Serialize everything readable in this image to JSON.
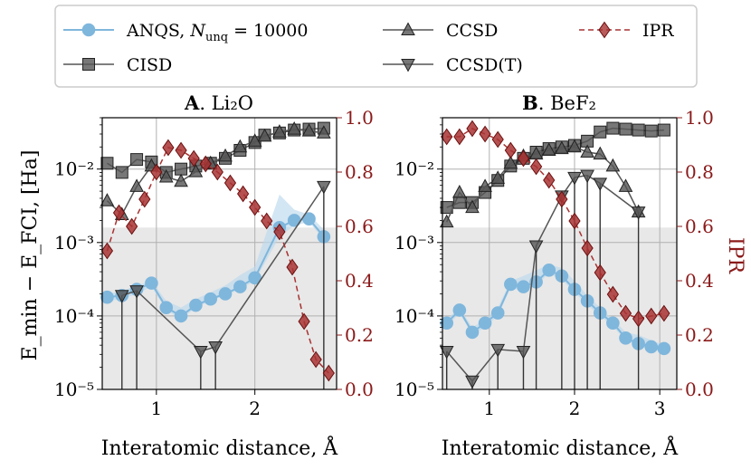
{
  "chart_data": [
    {
      "type": "line",
      "panel_letter": "A",
      "title_rest": "Li₂O",
      "xlabel": "Interatomic distance, Å",
      "ylabel": "E_min − E_FCI, [Ha]",
      "ylabel_right": "",
      "xlim": [
        0.45,
        2.83
      ],
      "ylim": [
        1e-05,
        0.05
      ],
      "ylim_right": [
        0.0,
        1.0
      ],
      "y_scale": "log",
      "x_ticks": [
        1,
        2
      ],
      "y_ticks": [
        "10⁻⁵",
        "10⁻⁴",
        "10⁻³",
        "10⁻²"
      ],
      "y_right_ticks": [
        "0.0",
        "0.2",
        "0.4",
        "0.6",
        "0.8",
        "1.0"
      ],
      "chemical_accuracy_band": 0.0016,
      "grid": true,
      "series": [
        {
          "key": "anqs",
          "x": [
            0.5,
            0.65,
            0.8,
            0.95,
            1.1,
            1.25,
            1.4,
            1.55,
            1.7,
            1.85,
            2.0,
            2.25,
            2.4,
            2.55,
            2.7
          ],
          "y": [
            0.00018,
            0.00019,
            0.00023,
            0.00028,
            0.00013,
            0.0001,
            0.00014,
            0.00017,
            0.0002,
            0.00025,
            0.00033,
            0.0016,
            0.002,
            0.0021,
            0.0012
          ],
          "band_high": [
            0.0002,
            0.00022,
            0.00026,
            0.0003,
            0.00016,
            0.00013,
            0.00017,
            0.00021,
            0.00026,
            0.00036,
            0.00047,
            0.0045,
            0.0028,
            0.0024,
            0.0015
          ],
          "band_low": [
            0.00016,
            0.00017,
            0.0002,
            0.00025,
            0.00012,
            9e-05,
            0.00013,
            0.00016,
            0.00019,
            0.00023,
            0.0003,
            0.0012,
            0.0017,
            0.0019,
            0.0011
          ]
        },
        {
          "key": "cisd",
          "x": [
            0.5,
            0.65,
            0.8,
            0.95,
            1.1,
            1.25,
            1.4,
            1.55,
            1.7,
            1.85,
            2.0,
            2.1,
            2.25,
            2.4,
            2.55,
            2.7
          ],
          "y": [
            0.012,
            0.009,
            0.0135,
            0.0125,
            0.009,
            0.01,
            0.011,
            0.012,
            0.014,
            0.018,
            0.023,
            0.029,
            0.031,
            0.034,
            0.035,
            0.036
          ]
        },
        {
          "key": "ccsd",
          "x": [
            0.5,
            0.65,
            0.8,
            0.95,
            1.1,
            1.25,
            1.4,
            1.55,
            1.7,
            1.85,
            2.0,
            2.1,
            2.25,
            2.4,
            2.55,
            2.7
          ],
          "y": [
            0.0037,
            0.0024,
            0.0058,
            0.011,
            0.0078,
            0.0068,
            0.0092,
            0.012,
            0.015,
            0.02,
            0.024,
            0.028,
            0.032,
            0.035,
            0.033,
            0.031
          ]
        },
        {
          "key": "ccsdt",
          "x": [
            0.65,
            0.8,
            1.45,
            1.6,
            2.7
          ],
          "y": [
            0.00019,
            0.00022,
            3.3e-05,
            3.8e-05,
            0.0058
          ]
        },
        {
          "key": "ipr",
          "x": [
            0.5,
            0.62,
            0.75,
            0.88,
            1.0,
            1.12,
            1.25,
            1.38,
            1.5,
            1.62,
            1.75,
            1.88,
            2.0,
            2.12,
            2.25,
            2.38,
            2.5,
            2.62,
            2.75
          ],
          "y": [
            0.51,
            0.65,
            0.6,
            0.7,
            0.8,
            0.89,
            0.88,
            0.85,
            0.83,
            0.8,
            0.76,
            0.72,
            0.67,
            0.62,
            0.58,
            0.45,
            0.25,
            0.11,
            0.06
          ]
        }
      ]
    },
    {
      "type": "line",
      "panel_letter": "B",
      "title_rest": "BeF₂",
      "xlabel": "Interatomic distance, Å",
      "ylabel": "",
      "ylabel_right": "IPR",
      "xlim": [
        0.45,
        3.2
      ],
      "ylim": [
        1e-05,
        0.05
      ],
      "ylim_right": [
        0.0,
        1.0
      ],
      "y_scale": "log",
      "x_ticks": [
        1,
        2,
        3
      ],
      "y_ticks": [
        "10⁻⁵",
        "10⁻⁴",
        "10⁻³",
        "10⁻²"
      ],
      "y_right_ticks": [
        "0.0",
        "0.2",
        "0.4",
        "0.6",
        "0.8",
        "1.0"
      ],
      "chemical_accuracy_band": 0.0016,
      "grid": true,
      "series": [
        {
          "key": "anqs",
          "x": [
            0.5,
            0.65,
            0.8,
            0.95,
            1.1,
            1.25,
            1.4,
            1.55,
            1.7,
            1.85,
            2.0,
            2.15,
            2.3,
            2.45,
            2.6,
            2.75,
            2.9,
            3.05
          ],
          "y": [
            8e-05,
            0.00012,
            6e-05,
            8e-05,
            0.00011,
            0.00027,
            0.00025,
            0.00029,
            0.00042,
            0.00035,
            0.00023,
            0.00016,
            0.00011,
            8e-05,
            5e-05,
            4.2e-05,
            3.8e-05,
            3.6e-05
          ],
          "band_high": [
            9e-05,
            0.00013,
            7e-05,
            9e-05,
            0.00013,
            0.0003,
            0.00035,
            0.00042,
            0.0005,
            0.00045,
            0.0003,
            0.00019,
            0.00013,
            9e-05,
            6e-05,
            5.5e-05,
            4.7e-05,
            4e-05
          ],
          "band_low": [
            7e-05,
            0.00011,
            5.5e-05,
            7e-05,
            0.0001,
            0.00024,
            0.00022,
            0.00026,
            0.00038,
            0.00031,
            0.00021,
            0.00014,
            0.0001,
            7.2e-05,
            4.6e-05,
            3.9e-05,
            3.5e-05,
            3.3e-05
          ]
        },
        {
          "key": "cisd",
          "x": [
            0.5,
            0.65,
            0.8,
            0.95,
            1.1,
            1.25,
            1.4,
            1.55,
            1.7,
            1.85,
            2.0,
            2.15,
            2.3,
            2.45,
            2.6,
            2.75,
            2.9,
            3.05
          ],
          "y": [
            0.003,
            0.0035,
            0.0035,
            0.0048,
            0.007,
            0.011,
            0.014,
            0.017,
            0.019,
            0.02,
            0.021,
            0.024,
            0.032,
            0.036,
            0.035,
            0.034,
            0.033,
            0.034
          ]
        },
        {
          "key": "ccsd",
          "x": [
            0.5,
            0.65,
            0.8,
            0.95,
            1.1,
            1.25,
            1.4,
            1.55,
            1.7,
            1.85,
            2.0,
            2.15,
            2.3,
            2.45,
            2.6,
            2.75
          ],
          "y": [
            0.0019,
            0.0048,
            0.003,
            0.0058,
            0.0075,
            0.012,
            0.015,
            0.016,
            0.018,
            0.019,
            0.02,
            0.017,
            0.016,
            0.011,
            0.0058,
            0.0026
          ]
        },
        {
          "key": "ccsdt",
          "x": [
            0.5,
            0.8,
            1.1,
            1.4,
            1.55,
            1.85,
            2.0,
            2.15,
            2.3,
            2.75
          ],
          "y": [
            3.3e-05,
            1.3e-05,
            3.5e-05,
            3.3e-05,
            0.0009,
            0.0043,
            0.0077,
            0.0082,
            0.0064,
            0.0026
          ]
        },
        {
          "key": "ipr",
          "x": [
            0.5,
            0.65,
            0.8,
            0.95,
            1.1,
            1.25,
            1.4,
            1.55,
            1.7,
            1.85,
            2.0,
            2.15,
            2.3,
            2.45,
            2.6,
            2.75,
            2.9,
            3.05
          ],
          "y": [
            0.93,
            0.93,
            0.96,
            0.94,
            0.92,
            0.88,
            0.85,
            0.82,
            0.77,
            0.7,
            0.62,
            0.52,
            0.43,
            0.35,
            0.28,
            0.26,
            0.27,
            0.28
          ]
        }
      ]
    }
  ],
  "legend": {
    "placement": "top",
    "entries": [
      {
        "key": "anqs",
        "prefix": "ANQS, ",
        "var": "N",
        "sub": "unq",
        "suffix": " = 10000",
        "color": "#7fb6dc",
        "marker": "circle",
        "dash": false
      },
      {
        "key": "cisd",
        "prefix": "CISD",
        "color": "#555555",
        "marker": "square",
        "dash": false
      },
      {
        "key": "ccsd",
        "prefix": "CCSD",
        "color": "#555555",
        "marker": "triangle-up",
        "dash": false
      },
      {
        "key": "ccsdt",
        "prefix": "CCSD(T)",
        "color": "#555555",
        "marker": "triangle-down",
        "dash": false
      },
      {
        "key": "ipr",
        "prefix": "IPR",
        "color": "#a83232",
        "marker": "diamond",
        "dash": true
      }
    ]
  },
  "colors": {
    "anqs": "#7fb6dc",
    "anqs_band": "#bcd8ec",
    "reference": "#555555",
    "ipr": "#a83232",
    "ipr_axis": "#8b1a1a",
    "accuracy_band": "#e8e8e8"
  }
}
